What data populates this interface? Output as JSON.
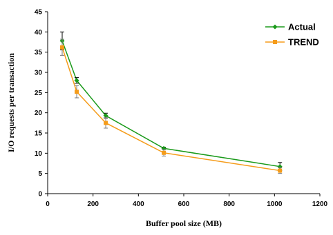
{
  "chart_data": {
    "type": "line",
    "title": "",
    "xlabel": "Buffer pool size (MB)",
    "ylabel": "I/O requests per transaction",
    "xlim": [
      0,
      1200
    ],
    "ylim": [
      0,
      45
    ],
    "xticks": [
      0,
      200,
      400,
      600,
      800,
      1000,
      1200
    ],
    "yticks": [
      0,
      5,
      10,
      15,
      20,
      25,
      30,
      35,
      40,
      45
    ],
    "grid": false,
    "legend_position": "top-right",
    "series": [
      {
        "name": "Actual",
        "color": "#1a9a1a",
        "marker": "diamond",
        "x": [
          64,
          128,
          256,
          512,
          1024
        ],
        "y": [
          37.8,
          28.0,
          19.3,
          11.2,
          6.7
        ],
        "error": [
          2.2,
          0.7,
          0.6,
          0.3,
          1.0
        ]
      },
      {
        "name": "TREND",
        "color": "#f59c1a",
        "marker": "square",
        "x": [
          64,
          128,
          256,
          512,
          1024
        ],
        "y": [
          36.2,
          25.2,
          17.5,
          10.1,
          5.7
        ],
        "error": [
          2.0,
          1.5,
          1.3,
          0.8,
          0.7
        ]
      }
    ]
  }
}
